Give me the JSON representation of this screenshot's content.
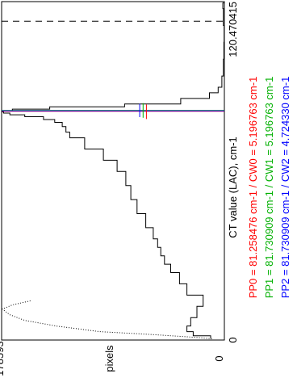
{
  "chart_data": {
    "type": "line",
    "orientation": "rotated-90-ccw",
    "xlabel": "CT value (LAC), cm-1",
    "ylabel": "pixels",
    "x_tick_labels": [
      "0",
      "120.470415"
    ],
    "y_tick_labels": [
      "0",
      "178593"
    ],
    "xlim": [
      0,
      120.470415
    ],
    "ylim": [
      0,
      178593
    ],
    "grid": false,
    "series": [
      {
        "style": "step",
        "color": "#000000",
        "x": [
          0.5,
          1.5,
          3,
          5,
          8,
          12,
          16,
          20,
          24,
          27,
          30,
          33,
          36,
          40,
          45,
          50,
          55,
          60,
          64,
          68,
          72,
          74,
          76,
          77.5,
          78.5,
          79.5,
          80.2,
          80.8,
          81.2,
          81.6,
          82.2,
          83,
          84,
          86,
          88,
          90,
          94,
          100,
          106,
          112,
          118,
          120
        ],
        "y": [
          11000,
          25000,
          30000,
          27000,
          22000,
          17000,
          30000,
          36000,
          43000,
          48000,
          51000,
          53500,
          57000,
          63000,
          70000,
          75000,
          79000,
          86000,
          97000,
          112000,
          124000,
          127000,
          130000,
          136000,
          145000,
          160000,
          172000,
          177000,
          178593,
          170000,
          140000,
          80000,
          35000,
          12000,
          5000,
          2000,
          800,
          400,
          200,
          800,
          1200,
          200
        ]
      },
      {
        "style": "dotted",
        "color": "#000000",
        "x": [
          0.5,
          1,
          2,
          3,
          5,
          7,
          9,
          11,
          12.5,
          14
        ],
        "y": [
          10000,
          25000,
          60000,
          100000,
          135000,
          160000,
          172000,
          178000,
          170000,
          155000
        ]
      }
    ],
    "markers": [
      {
        "label": "PP0",
        "value": 81.258476,
        "color": "#ff0000",
        "range": [
          0.0,
          1.0
        ]
      },
      {
        "label": "PP1",
        "value": 81.730909,
        "color": "#00b000",
        "range": [
          0.0,
          1.0
        ]
      },
      {
        "label": "PP2",
        "value": 81.730909,
        "color": "#0000ff",
        "range": [
          0.0,
          1.0
        ]
      },
      {
        "label": "CW0",
        "value": 5.196763,
        "color": "#ff0000"
      },
      {
        "label": "CW1",
        "value": 5.196763,
        "color": "#00b000"
      },
      {
        "label": "CW2",
        "value": 4.72433,
        "color": "#0000ff"
      }
    ],
    "annotations": [
      {
        "text": "PP0 = 81.258476 cm-1 / CW0 = 5.196763 cm-1",
        "color": "#ff0000"
      },
      {
        "text": "PP1 = 81.730909 cm-1 / CW1 = 5.196763 cm-1",
        "color": "#00b000"
      },
      {
        "text": "PP2 = 81.730909 cm-1 / CW2 = 4.724330 cm-1",
        "color": "#0000ff"
      }
    ],
    "threshold_line": {
      "value": 178593,
      "style": "dashed",
      "color": "#000000"
    }
  }
}
